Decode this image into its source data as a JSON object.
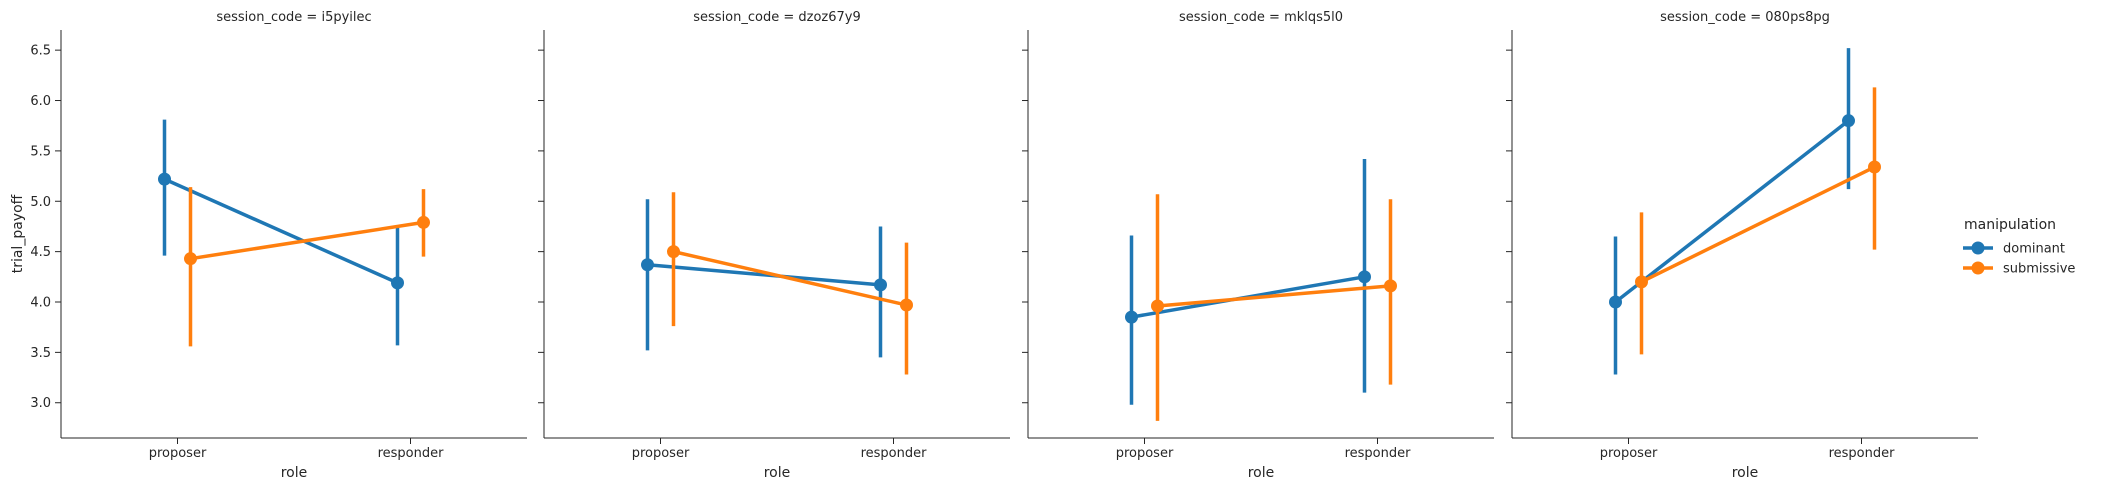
{
  "chart_data": {
    "type": "line",
    "facet_variable": "session_code",
    "facet_title_template": "session_code = {value}",
    "x_categories": [
      "proposer",
      "responder"
    ],
    "xlabel": "role",
    "ylabel": "trial_payoff",
    "ylim": [
      2.65,
      6.7
    ],
    "yticks": [
      3.0,
      3.5,
      4.0,
      4.5,
      5.0,
      5.5,
      6.0,
      6.5
    ],
    "sharey": true,
    "grid": false,
    "legend": {
      "title": "manipulation",
      "position": "right",
      "entries": [
        "dominant",
        "submissive"
      ]
    },
    "series_colors": {
      "dominant": "#1f77b4",
      "submissive": "#ff7f0e"
    },
    "panels": [
      {
        "session_code": "i5pyilec",
        "title": "session_code = i5pyilec",
        "series": [
          {
            "name": "dominant",
            "values": [
              5.22,
              4.19
            ],
            "ci": [
              [
                4.46,
                5.81
              ],
              [
                3.57,
                4.74
              ]
            ]
          },
          {
            "name": "submissive",
            "values": [
              4.43,
              4.79
            ],
            "ci": [
              [
                3.56,
                5.14
              ],
              [
                4.45,
                5.12
              ]
            ]
          }
        ]
      },
      {
        "session_code": "dzoz67y9",
        "title": "session_code = dzoz67y9",
        "series": [
          {
            "name": "dominant",
            "values": [
              4.37,
              4.17
            ],
            "ci": [
              [
                3.52,
                5.02
              ],
              [
                3.45,
                4.75
              ]
            ]
          },
          {
            "name": "submissive",
            "values": [
              4.5,
              3.97
            ],
            "ci": [
              [
                3.76,
                5.09
              ],
              [
                3.28,
                4.59
              ]
            ]
          }
        ]
      },
      {
        "session_code": "mklqs5l0",
        "title": "session_code = mklqs5l0",
        "series": [
          {
            "name": "dominant",
            "values": [
              3.85,
              4.25
            ],
            "ci": [
              [
                2.98,
                4.66
              ],
              [
                3.1,
                5.42
              ]
            ]
          },
          {
            "name": "submissive",
            "values": [
              3.96,
              4.16
            ],
            "ci": [
              [
                2.82,
                5.07
              ],
              [
                3.18,
                5.02
              ]
            ]
          }
        ]
      },
      {
        "session_code": "080ps8pg",
        "title": "session_code = 080ps8pg",
        "series": [
          {
            "name": "dominant",
            "values": [
              4.0,
              5.8
            ],
            "ci": [
              [
                3.28,
                4.65
              ],
              [
                5.12,
                6.52
              ]
            ]
          },
          {
            "name": "submissive",
            "values": [
              4.2,
              5.34
            ],
            "ci": [
              [
                3.48,
                4.89
              ],
              [
                4.52,
                6.13
              ]
            ]
          }
        ]
      }
    ]
  }
}
